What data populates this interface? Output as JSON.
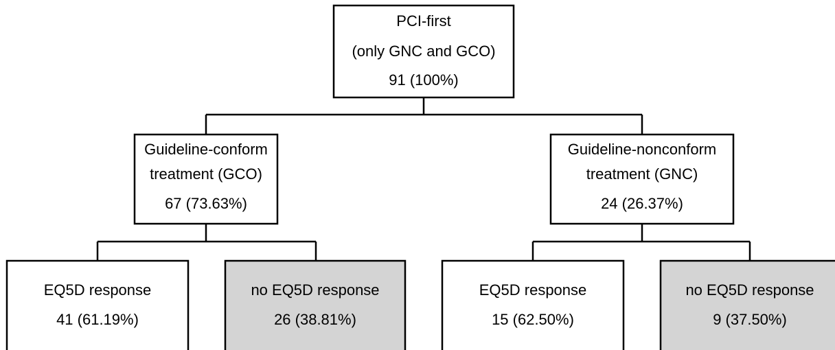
{
  "nodes": [
    {
      "lines": [
        "PCI-first",
        "(only GNC and GCO)",
        "91 (100%)"
      ]
    },
    {
      "lines": [
        "Guideline-conform",
        "treatment (GCO)",
        "67 (73.63%)"
      ]
    },
    {
      "lines": [
        "Guideline-nonconform",
        "treatment (GNC)",
        "24 (26.37%)"
      ]
    },
    {
      "lines": [
        "EQ5D response",
        "41 (61.19%)"
      ]
    },
    {
      "lines": [
        "no EQ5D response",
        "26 (38.81%)"
      ]
    },
    {
      "lines": [
        "EQ5D response",
        "15 (62.50%)"
      ]
    },
    {
      "lines": [
        "no EQ5D response",
        "9 (37.50%)"
      ]
    }
  ]
}
